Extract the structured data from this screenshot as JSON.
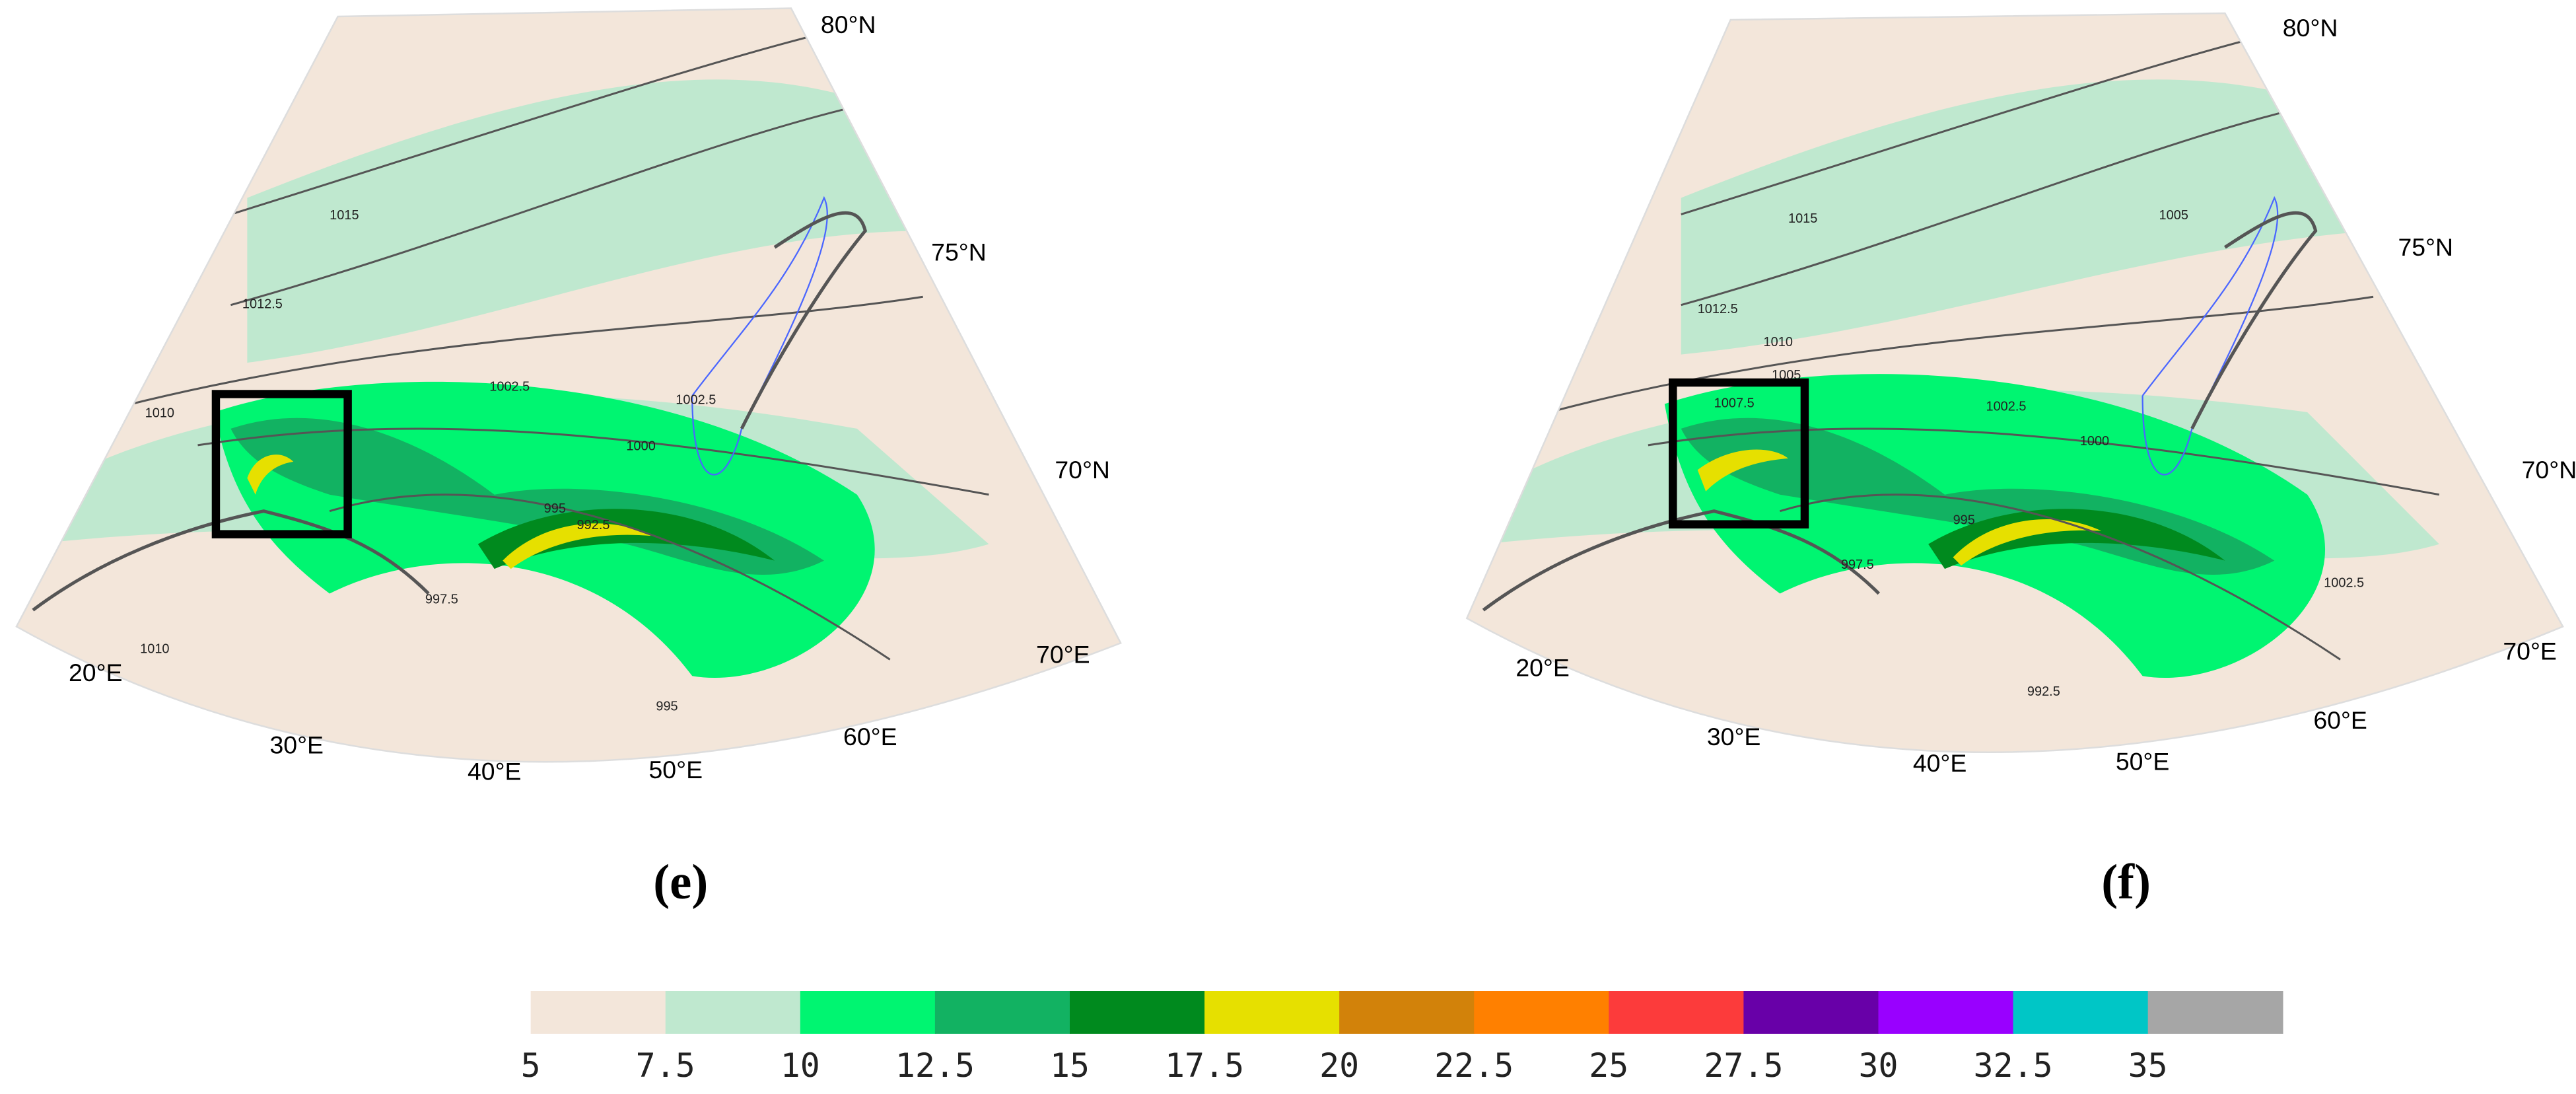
{
  "panels": [
    {
      "label": "(e)",
      "lat_labels": [
        "80°N",
        "75°N",
        "70°N"
      ],
      "lon_labels": [
        "20°E",
        "30°E",
        "40°E",
        "50°E",
        "60°E",
        "70°E"
      ],
      "contour_labels": [
        "1015",
        "1012.5",
        "1010",
        "1002.5",
        "1000",
        "995",
        "992.5",
        "997.5",
        "1002.5",
        "1010",
        "995"
      ]
    },
    {
      "label": "(f)",
      "lat_labels": [
        "80°N",
        "75°N",
        "70°N"
      ],
      "lon_labels": [
        "20°E",
        "30°E",
        "40°E",
        "50°E",
        "60°E",
        "70°E"
      ],
      "contour_labels": [
        "1015",
        "1012.5",
        "1010",
        "1005",
        "1007.5",
        "1002.5",
        "1000",
        "995",
        "992.5",
        "997.5",
        "1005",
        "1002.5"
      ]
    }
  ],
  "colorbar": {
    "ticks": [
      "5",
      "7.5",
      "10",
      "12.5",
      "15",
      "17.5",
      "20",
      "22.5",
      "25",
      "27.5",
      "30",
      "32.5",
      "35"
    ],
    "colors": [
      "#f3e6da",
      "#bfe8cf",
      "#00f571",
      "#12b262",
      "#008a1e",
      "#e6e000",
      "#d2820a",
      "#ff8000",
      "#fc3b3b",
      "#6800a8",
      "#9900ff",
      "#00c6c6",
      "#a6a6a6"
    ]
  }
}
